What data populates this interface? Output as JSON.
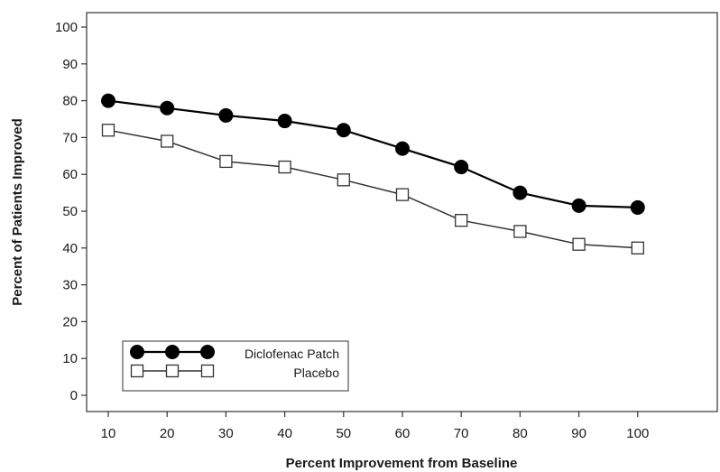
{
  "chart_data": {
    "type": "line",
    "title": "",
    "xlabel": "Percent Improvement from Baseline",
    "ylabel": "Percent of Patients Improved",
    "x": [
      10,
      20,
      30,
      40,
      50,
      60,
      70,
      80,
      90,
      100
    ],
    "xlim": [
      5,
      105
    ],
    "ylim": [
      0,
      100
    ],
    "yticks": [
      0,
      10,
      20,
      30,
      40,
      50,
      60,
      70,
      80,
      90,
      100
    ],
    "grid": false,
    "legend_position": "bottom-left",
    "series": [
      {
        "name": "Diclofenac Patch",
        "values": [
          80,
          78,
          76,
          74.5,
          72,
          67,
          62,
          55,
          51.5,
          51
        ],
        "color": "#000000",
        "marker": "filled-circle"
      },
      {
        "name": "Placebo",
        "values": [
          72,
          69,
          63.5,
          62,
          58.5,
          54.5,
          47.5,
          44.5,
          41,
          40
        ],
        "color": "#333333",
        "marker": "open-square"
      }
    ]
  }
}
